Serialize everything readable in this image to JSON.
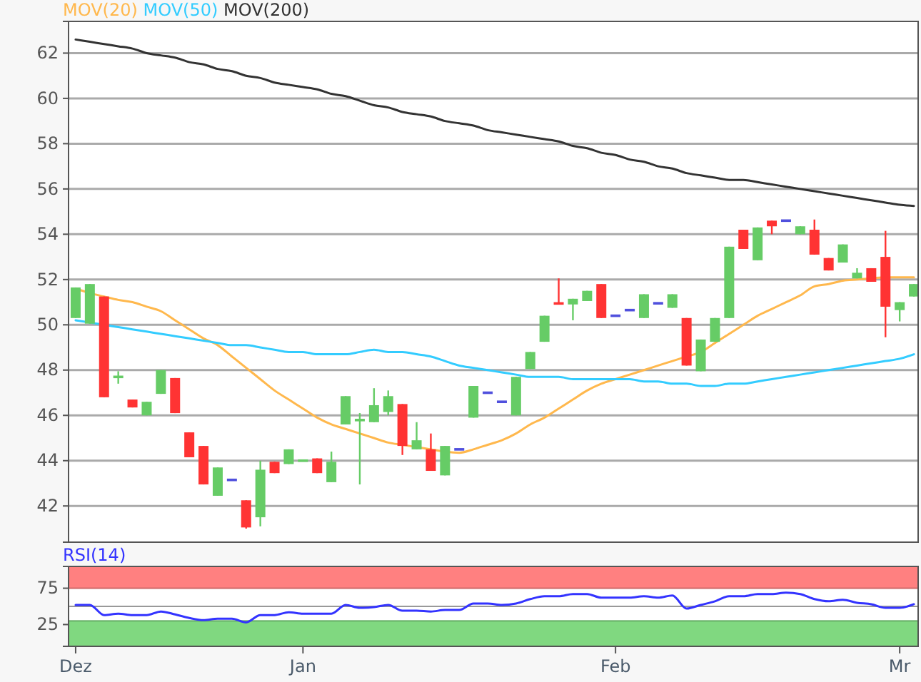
{
  "chart_data": [
    {
      "type": "candlestick",
      "categories": [
        null,
        null,
        null,
        null,
        null,
        null,
        null,
        null,
        null,
        null,
        null,
        null,
        null,
        null,
        null,
        null,
        null,
        null,
        null,
        null,
        null,
        null,
        null,
        null,
        null,
        null,
        null,
        null,
        null,
        null,
        null,
        null,
        null,
        null,
        null,
        null,
        null,
        null,
        null,
        null,
        null,
        null,
        null,
        null,
        null,
        null,
        null,
        null,
        null,
        null,
        null,
        null,
        null,
        null,
        null,
        null,
        null,
        null,
        null,
        null
      ],
      "ohlc": [
        [
          50.3,
          51.65,
          50.3,
          51.65
        ],
        [
          50.05,
          51.8,
          50.05,
          51.8
        ],
        [
          51.25,
          51.25,
          46.8,
          46.8
        ],
        [
          47.7,
          47.95,
          47.4,
          47.7
        ],
        [
          46.7,
          46.7,
          46.35,
          46.35
        ],
        [
          46.0,
          46.6,
          46.0,
          46.6
        ],
        [
          46.95,
          48.0,
          46.95,
          48.0
        ],
        [
          47.65,
          47.65,
          46.1,
          46.1
        ],
        [
          45.25,
          45.25,
          44.15,
          44.15
        ],
        [
          44.65,
          44.65,
          42.95,
          42.95
        ],
        [
          42.45,
          43.7,
          42.45,
          43.7
        ],
        [
          43.15,
          43.15,
          43.15,
          43.15
        ],
        [
          42.25,
          42.25,
          41.0,
          41.05
        ],
        [
          41.5,
          44.0,
          41.1,
          43.6
        ],
        [
          43.95,
          43.95,
          43.45,
          43.45
        ],
        [
          43.85,
          44.5,
          43.85,
          44.5
        ],
        [
          44.0,
          44.0,
          44.0,
          44.0
        ],
        [
          44.1,
          44.1,
          43.45,
          43.45
        ],
        [
          43.05,
          44.4,
          43.05,
          43.95
        ],
        [
          45.6,
          46.85,
          45.6,
          46.85
        ],
        [
          45.75,
          46.1,
          42.95,
          45.85
        ],
        [
          45.7,
          47.2,
          45.7,
          46.45
        ],
        [
          46.15,
          47.1,
          46.0,
          46.85
        ],
        [
          46.5,
          46.5,
          44.25,
          44.65
        ],
        [
          44.5,
          45.7,
          44.5,
          44.9
        ],
        [
          44.5,
          45.2,
          43.55,
          43.55
        ],
        [
          43.35,
          44.65,
          43.35,
          44.65
        ],
        [
          44.5,
          44.5,
          44.5,
          44.5
        ],
        [
          45.9,
          47.3,
          45.9,
          47.3
        ],
        [
          47.0,
          47.0,
          47.0,
          47.0
        ],
        [
          46.6,
          46.6,
          46.6,
          46.6
        ],
        [
          46.0,
          47.7,
          46.0,
          47.7
        ],
        [
          48.05,
          48.8,
          48.05,
          48.8
        ],
        [
          49.25,
          50.4,
          49.25,
          50.4
        ],
        [
          51.0,
          52.05,
          50.9,
          50.9
        ],
        [
          50.9,
          51.15,
          50.2,
          51.15
        ],
        [
          51.05,
          51.5,
          51.05,
          51.5
        ],
        [
          51.8,
          51.8,
          50.3,
          50.3
        ],
        [
          50.4,
          50.4,
          50.4,
          50.4
        ],
        [
          50.65,
          50.65,
          50.65,
          50.65
        ],
        [
          50.3,
          51.35,
          50.3,
          51.35
        ],
        [
          50.95,
          50.95,
          50.95,
          50.95
        ],
        [
          50.75,
          51.35,
          50.75,
          51.35
        ],
        [
          50.3,
          50.3,
          48.2,
          48.2
        ],
        [
          47.95,
          49.35,
          47.95,
          49.35
        ],
        [
          49.25,
          50.3,
          49.25,
          50.3
        ],
        [
          50.3,
          53.45,
          50.3,
          53.45
        ],
        [
          54.2,
          54.2,
          53.35,
          53.35
        ],
        [
          52.85,
          54.3,
          52.85,
          54.3
        ],
        [
          54.6,
          54.6,
          54.0,
          54.35
        ],
        [
          54.6,
          54.6,
          54.6,
          54.6
        ],
        [
          54.0,
          54.35,
          54.0,
          54.35
        ],
        [
          54.2,
          54.65,
          53.1,
          53.1
        ],
        [
          52.95,
          52.95,
          52.4,
          52.4
        ],
        [
          52.75,
          53.55,
          52.75,
          53.55
        ],
        [
          52.05,
          52.5,
          52.05,
          52.3
        ],
        [
          52.5,
          52.5,
          51.9,
          51.9
        ],
        [
          53.0,
          54.15,
          49.45,
          50.8
        ],
        [
          50.65,
          51.0,
          50.15,
          51.0
        ],
        [
          51.25,
          51.8,
          51.25,
          51.8
        ]
      ],
      "colors": [
        "#66cc66",
        "#66cc66",
        "#ff3333",
        "#66cc66",
        "#ff3333",
        "#66cc66",
        "#66cc66",
        "#ff3333",
        "#ff3333",
        "#ff3333",
        "#66cc66",
        "#5050dd",
        "#ff3333",
        "#66cc66",
        "#ff3333",
        "#66cc66",
        "#66cc66",
        "#ff3333",
        "#66cc66",
        "#66cc66",
        "#66cc66",
        "#66cc66",
        "#66cc66",
        "#ff3333",
        "#66cc66",
        "#ff3333",
        "#66cc66",
        "#5050dd",
        "#66cc66",
        "#5050dd",
        "#5050dd",
        "#66cc66",
        "#66cc66",
        "#66cc66",
        "#ff3333",
        "#66cc66",
        "#66cc66",
        "#ff3333",
        "#5050dd",
        "#5050dd",
        "#66cc66",
        "#5050dd",
        "#66cc66",
        "#ff3333",
        "#66cc66",
        "#66cc66",
        "#66cc66",
        "#ff3333",
        "#66cc66",
        "#ff3333",
        "#5050dd",
        "#66cc66",
        "#ff3333",
        "#ff3333",
        "#66cc66",
        "#66cc66",
        "#ff3333",
        "#ff3333",
        "#66cc66",
        "#66cc66"
      ],
      "series": [
        {
          "name": "MOV(20)",
          "color": "#ffb84d",
          "type": "line",
          "values": [
            51.6,
            51.4,
            51.25,
            51.1,
            51.0,
            50.8,
            50.6,
            50.2,
            49.8,
            49.4,
            49.1,
            48.6,
            48.1,
            47.6,
            47.1,
            46.7,
            46.3,
            45.9,
            45.6,
            45.4,
            45.2,
            45.0,
            44.8,
            44.7,
            44.6,
            44.5,
            44.4,
            44.35,
            44.5,
            44.7,
            44.9,
            45.2,
            45.6,
            45.9,
            46.3,
            46.7,
            47.1,
            47.4,
            47.6,
            47.8,
            48.0,
            48.2,
            48.4,
            48.6,
            48.8,
            49.2,
            49.6,
            50.0,
            50.4,
            50.7,
            51.0,
            51.3,
            51.7,
            51.8,
            51.95,
            52.0,
            52.05,
            52.1,
            52.1,
            52.1
          ]
        },
        {
          "name": "MOV(50)",
          "color": "#33ccff",
          "type": "line",
          "values": [
            50.2,
            50.1,
            50.0,
            49.9,
            49.8,
            49.7,
            49.6,
            49.5,
            49.4,
            49.3,
            49.2,
            49.1,
            49.1,
            49.0,
            48.9,
            48.8,
            48.8,
            48.7,
            48.7,
            48.7,
            48.8,
            48.9,
            48.8,
            48.8,
            48.7,
            48.6,
            48.4,
            48.2,
            48.1,
            48.0,
            47.9,
            47.8,
            47.7,
            47.7,
            47.7,
            47.6,
            47.6,
            47.6,
            47.6,
            47.6,
            47.5,
            47.5,
            47.4,
            47.4,
            47.3,
            47.3,
            47.4,
            47.4,
            47.5,
            47.6,
            47.7,
            47.8,
            47.9,
            48.0,
            48.1,
            48.2,
            48.3,
            48.4,
            48.5,
            48.7
          ]
        },
        {
          "name": "MOV(200)",
          "color": "#333333",
          "type": "line",
          "values": [
            62.6,
            62.5,
            62.4,
            62.3,
            62.2,
            62.0,
            61.9,
            61.8,
            61.6,
            61.5,
            61.3,
            61.2,
            61.0,
            60.9,
            60.7,
            60.6,
            60.5,
            60.4,
            60.2,
            60.1,
            59.9,
            59.7,
            59.6,
            59.4,
            59.3,
            59.2,
            59.0,
            58.9,
            58.8,
            58.6,
            58.5,
            58.4,
            58.3,
            58.2,
            58.1,
            57.9,
            57.8,
            57.6,
            57.5,
            57.3,
            57.2,
            57.0,
            56.9,
            56.7,
            56.6,
            56.5,
            56.4,
            56.4,
            56.3,
            56.2,
            56.1,
            56.0,
            55.9,
            55.8,
            55.7,
            55.6,
            55.5,
            55.4,
            55.3,
            55.25
          ]
        }
      ],
      "ylim": [
        40.4,
        63.4
      ],
      "yticks": [
        42,
        44,
        46,
        48,
        50,
        52,
        54,
        56,
        58,
        60,
        62
      ],
      "grid": "y",
      "legend": "top left",
      "tick_labels": "y"
    },
    {
      "type": "line",
      "categories": [
        "Dez",
        null,
        null,
        null,
        null,
        null,
        null,
        null,
        null,
        null,
        null,
        null,
        null,
        null,
        null,
        null,
        "Jan",
        null,
        null,
        null,
        null,
        null,
        null,
        null,
        null,
        null,
        null,
        null,
        null,
        null,
        null,
        null,
        null,
        null,
        null,
        null,
        null,
        null,
        "Feb",
        null,
        null,
        null,
        null,
        null,
        null,
        null,
        null,
        null,
        null,
        null,
        null,
        null,
        null,
        null,
        null,
        null,
        null,
        null,
        "Mr",
        null
      ],
      "series": [
        {
          "name": "RSI(14)",
          "color": "#3333ff",
          "values": [
            52,
            52,
            38,
            40,
            38,
            38,
            43,
            39,
            34,
            31,
            33,
            33,
            28,
            38,
            38,
            42,
            40,
            40,
            40,
            52,
            48,
            49,
            52,
            44,
            44,
            43,
            45,
            45,
            54,
            54,
            52,
            54,
            60,
            64,
            64,
            67,
            67,
            62,
            62,
            62,
            64,
            62,
            65,
            47,
            52,
            57,
            64,
            64,
            67,
            67,
            69,
            67,
            60,
            57,
            59,
            55,
            53,
            48,
            48,
            53
          ]
        }
      ],
      "ylim": [
        -5,
        105
      ],
      "yticks": [
        25,
        75
      ],
      "bands": [
        {
          "axis": "y",
          "from": 75,
          "to": 105,
          "color": "#ff8080"
        },
        {
          "axis": "y",
          "from": -5,
          "to": 30,
          "color": "#80d880"
        }
      ],
      "ref_lines": [
        {
          "axis": "y",
          "value": 50,
          "color": "#999999"
        }
      ],
      "legend": "top left"
    }
  ]
}
